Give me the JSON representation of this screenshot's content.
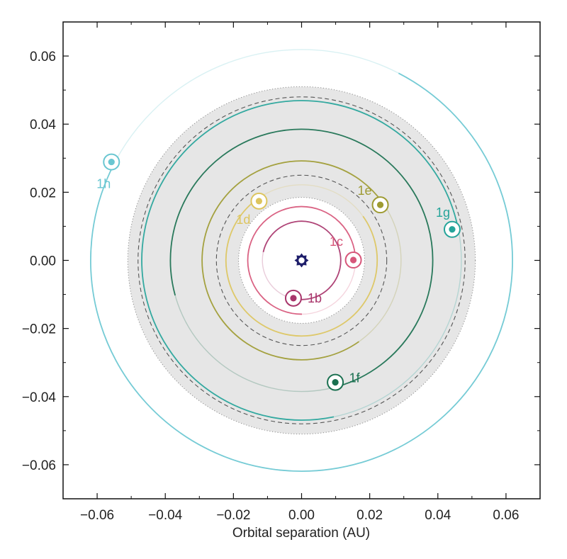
{
  "chart_data": {
    "type": "scatter",
    "title": "",
    "xlabel": "Orbital separation (AU)",
    "ylabel": "",
    "xlim": [
      -0.07,
      0.07
    ],
    "ylim": [
      -0.07,
      0.07
    ],
    "x_ticks": [
      -0.06,
      -0.04,
      -0.02,
      0.0,
      0.02,
      0.04,
      0.06
    ],
    "x_tick_labels": [
      "−0.06",
      "−0.04",
      "−0.02",
      "0.00",
      "0.02",
      "0.04",
      "0.06"
    ],
    "y_ticks": [
      0.06,
      0.04,
      0.02,
      0.0,
      -0.02,
      -0.04,
      -0.06
    ],
    "y_tick_labels": [
      "0.06",
      "0.04",
      "0.02",
      "0.00",
      "−0.02",
      "−0.04",
      "−0.06"
    ],
    "grid": false,
    "star": {
      "x": 0.0,
      "y": 0.0,
      "color": "#1f1f6b"
    },
    "habitable_zone": {
      "inner_au": 0.0185,
      "outer_au": 0.051,
      "color": "#e6e6e6",
      "dashed_au": [
        0.025,
        0.048
      ]
    },
    "planets": [
      {
        "name": "1b",
        "color": "#a8356b",
        "orbit_au": 0.0115,
        "x": -0.0024,
        "y": -0.0111
      },
      {
        "name": "1c",
        "color": "#d7567a",
        "orbit_au": 0.0158,
        "x": 0.0152,
        "y": 0.0001
      },
      {
        "name": "1d",
        "color": "#ddc55e",
        "orbit_au": 0.0222,
        "x": -0.0125,
        "y": 0.0174
      },
      {
        "name": "1e",
        "color": "#9e9b32",
        "orbit_au": 0.0292,
        "x": 0.0231,
        "y": 0.0163
      },
      {
        "name": "1f",
        "color": "#1a7050",
        "orbit_au": 0.0385,
        "x": 0.0099,
        "y": -0.0358
      },
      {
        "name": "1g",
        "color": "#25a49a",
        "orbit_au": 0.0469,
        "x": 0.0442,
        "y": 0.0091
      },
      {
        "name": "1h",
        "color": "#69c6d1",
        "orbit_au": 0.0619,
        "x": -0.0558,
        "y": 0.0289
      }
    ]
  }
}
